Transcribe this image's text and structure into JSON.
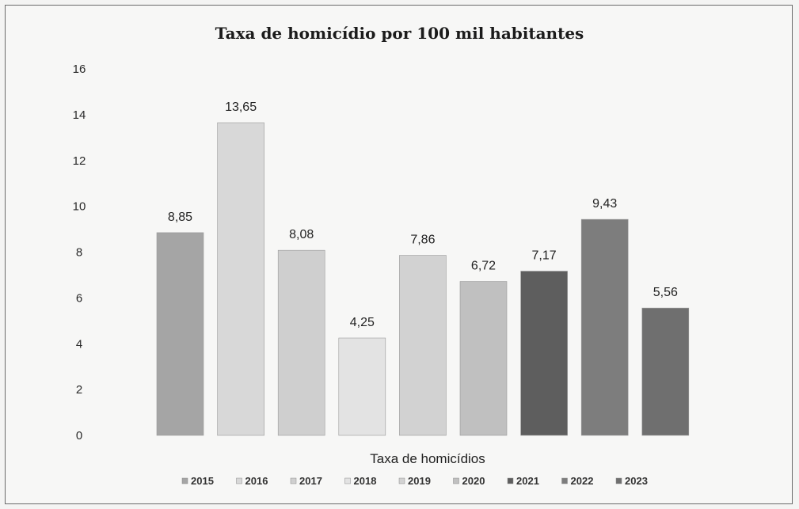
{
  "chart_data": {
    "type": "bar",
    "title": "Taxa de homicídio por 100 mil habitantes",
    "xlabel": "Taxa de homicídios",
    "ylabel": "",
    "ylim": [
      0,
      16
    ],
    "yticks": [
      "0",
      "2",
      "4",
      "6",
      "8",
      "10",
      "12",
      "14",
      "16"
    ],
    "categories": [
      "2015",
      "2016",
      "2017",
      "2018",
      "2019",
      "2020",
      "2021",
      "2022",
      "2023"
    ],
    "values": [
      8.85,
      13.65,
      8.08,
      4.25,
      7.86,
      6.72,
      7.17,
      9.43,
      5.56
    ],
    "value_labels": [
      "8,85",
      "13,65",
      "8,08",
      "4,25",
      "7,86",
      "6,72",
      "7,17",
      "9,43",
      "5,56"
    ],
    "colors": [
      "#a5a5a5",
      "#d8d8d8",
      "#cfcfcf",
      "#e3e3e3",
      "#d2d2d2",
      "#c0c0c0",
      "#5e5e5e",
      "#7d7d7d",
      "#6f6f6f"
    ],
    "grid": false,
    "legend_position": "bottom"
  }
}
